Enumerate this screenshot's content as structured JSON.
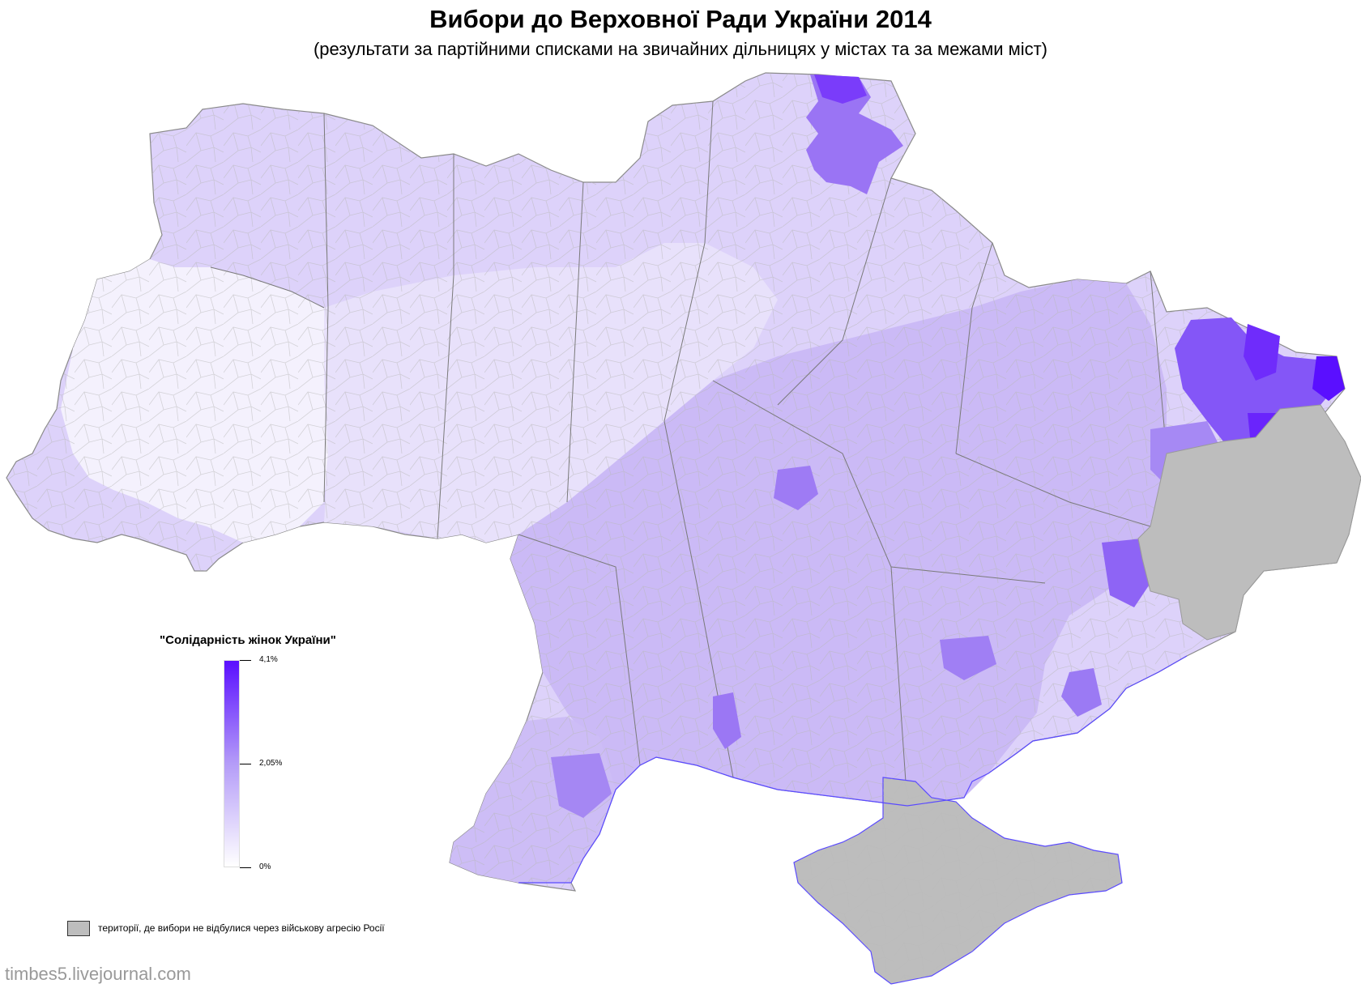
{
  "title": "Вибори до Верховної Ради України 2014",
  "subtitle": "(результати за партійними списками на звичайних дільницях у містах та за межами міст)",
  "legend": {
    "party": "\"Солідарність жінок України\"",
    "max_label": "4,1%",
    "mid_label": "2,05%",
    "min_label": "0%",
    "scale_max_percent": 4.1,
    "color_low": "#ffffff",
    "color_high": "#5a0fff"
  },
  "no_data": {
    "label": "території, де вибори не відбулися через військову агресію Росії",
    "color": "#bdbdbd"
  },
  "credit": "timbes5.livejournal.com",
  "colors": {
    "border": "#8a8a8a",
    "coast": "#5a4aff"
  }
}
